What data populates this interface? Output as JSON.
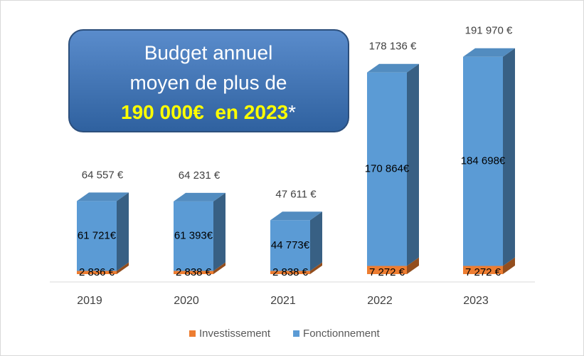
{
  "chart_data": {
    "type": "bar",
    "stacked": true,
    "categories": [
      "2019",
      "2020",
      "2021",
      "2022",
      "2023"
    ],
    "series": [
      {
        "name": "Investissement",
        "color": "#ed7d31",
        "values": [
          2836,
          2838,
          2838,
          7272,
          7272
        ],
        "value_labels": [
          "2 836 €",
          "2 838 €",
          "2 838 €",
          "7 272 €",
          "7 272 €"
        ]
      },
      {
        "name": "Fonctionnement",
        "color": "#5b9bd5",
        "values": [
          61721,
          61393,
          44773,
          170864,
          184698
        ],
        "value_labels": [
          "61 721€",
          "61 393€",
          "44 773€",
          "170 864€",
          "184 698€"
        ]
      }
    ],
    "total_labels": [
      "64 557 €",
      "64 231 €",
      "47 611 €",
      "178 136 €",
      "191 970 €"
    ],
    "ylim": [
      0,
      200000
    ],
    "legend": "bottom",
    "annotation": {
      "lines": [
        "Budget annuel",
        "moyen de plus de"
      ],
      "highlight": "190 000€  en 2023",
      "suffix": "*"
    }
  }
}
